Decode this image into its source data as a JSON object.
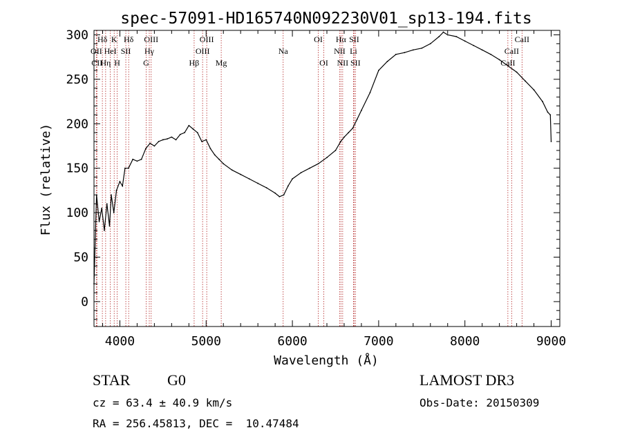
{
  "chart_data": {
    "type": "line",
    "title": "spec-57091-HD165740N092230V01_sp13-194.fits",
    "xlabel": "Wavelength (Å)",
    "ylabel": "Flux (relative)",
    "xlim": [
      3700,
      9100
    ],
    "ylim": [
      -28,
      305
    ],
    "x_ticks": [
      4000,
      5000,
      6000,
      7000,
      8000,
      9000
    ],
    "y_ticks": [
      0,
      50,
      100,
      150,
      200,
      250,
      300
    ],
    "grid": false,
    "legend": "none",
    "line_color": "#000000",
    "marker_color": "#b22222",
    "series": [
      {
        "x": [
          3700,
          3730,
          3760,
          3790,
          3820,
          3850,
          3880,
          3900,
          3930,
          3960,
          4000,
          4030,
          4060,
          4100,
          4150,
          4200,
          4250,
          4300,
          4350,
          4400,
          4450,
          4500,
          4550,
          4600,
          4650,
          4700,
          4750,
          4800,
          4850,
          4900,
          4950,
          5000,
          5050,
          5100,
          5150,
          5200,
          5300,
          5400,
          5500,
          5600,
          5700,
          5800,
          5850,
          5900,
          5950,
          6000,
          6100,
          6200,
          6300,
          6400,
          6500,
          6560,
          6600,
          6650,
          6700,
          6750,
          6800,
          6900,
          7000,
          7100,
          7200,
          7300,
          7400,
          7500,
          7600,
          7700,
          7750,
          7800,
          7900,
          8000,
          8100,
          8200,
          8300,
          8400,
          8500,
          8600,
          8700,
          8800,
          8900,
          8960,
          8990,
          9000
        ],
        "y": [
          20,
          120,
          90,
          105,
          80,
          110,
          85,
          120,
          100,
          125,
          135,
          130,
          150,
          150,
          160,
          158,
          160,
          172,
          178,
          175,
          180,
          182,
          183,
          185,
          182,
          188,
          190,
          198,
          194,
          190,
          180,
          182,
          172,
          165,
          160,
          155,
          148,
          143,
          138,
          133,
          128,
          122,
          118,
          120,
          130,
          138,
          145,
          150,
          155,
          162,
          170,
          180,
          185,
          190,
          195,
          205,
          215,
          235,
          260,
          270,
          278,
          280,
          283,
          285,
          290,
          298,
          303,
          300,
          298,
          293,
          288,
          283,
          278,
          272,
          265,
          258,
          248,
          238,
          225,
          213,
          210,
          180
        ]
      }
    ],
    "features": [
      {
        "name": "Hδ",
        "x": 3797,
        "row": 1
      },
      {
        "name": "OII",
        "x": 3727,
        "row": 2
      },
      {
        "name": "CII",
        "x": 3734,
        "row": 3
      },
      {
        "name": "K",
        "x": 3934,
        "row": 1
      },
      {
        "name": "HeI",
        "x": 3889,
        "row": 2
      },
      {
        "name": "Hη",
        "x": 3835,
        "row": 3
      },
      {
        "name": "SII",
        "x": 4069,
        "row": 2
      },
      {
        "name": "H",
        "x": 3969,
        "row": 3
      },
      {
        "name": "Hδ",
        "x": 4102,
        "row": 1
      },
      {
        "name": "OIII",
        "x": 4363,
        "row": 1
      },
      {
        "name": "Hγ",
        "x": 4341,
        "row": 2
      },
      {
        "name": "G",
        "x": 4305,
        "row": 3
      },
      {
        "name": "Hβ",
        "x": 4861,
        "row": 3
      },
      {
        "name": "OIII",
        "x": 5007,
        "row": 1
      },
      {
        "name": "OIII",
        "x": 4959,
        "row": 2
      },
      {
        "name": "Mg",
        "x": 5175,
        "row": 3
      },
      {
        "name": "Na",
        "x": 5893,
        "row": 2
      },
      {
        "name": "OI",
        "x": 6300,
        "row": 1
      },
      {
        "name": "OI",
        "x": 6364,
        "row": 3
      },
      {
        "name": "Hα",
        "x": 6563,
        "row": 1
      },
      {
        "name": "NII",
        "x": 6548,
        "row": 2
      },
      {
        "name": "NII",
        "x": 6583,
        "row": 3
      },
      {
        "name": "SII",
        "x": 6716,
        "row": 1
      },
      {
        "name": "Li",
        "x": 6708,
        "row": 2
      },
      {
        "name": "SII",
        "x": 6731,
        "row": 3
      },
      {
        "name": "CaII",
        "x": 8662,
        "row": 1
      },
      {
        "name": "CaII",
        "x": 8542,
        "row": 2
      },
      {
        "name": "CaII",
        "x": 8498,
        "row": 3
      }
    ]
  },
  "info": {
    "object_class": "STAR",
    "subclass": "G0",
    "survey": "LAMOST DR3",
    "cz": "cz = 63.4 ± 40.9 km/s",
    "obs_date": "Obs-Date: 20150309",
    "coords": "RA = 256.45813, DEC =  10.47484"
  }
}
